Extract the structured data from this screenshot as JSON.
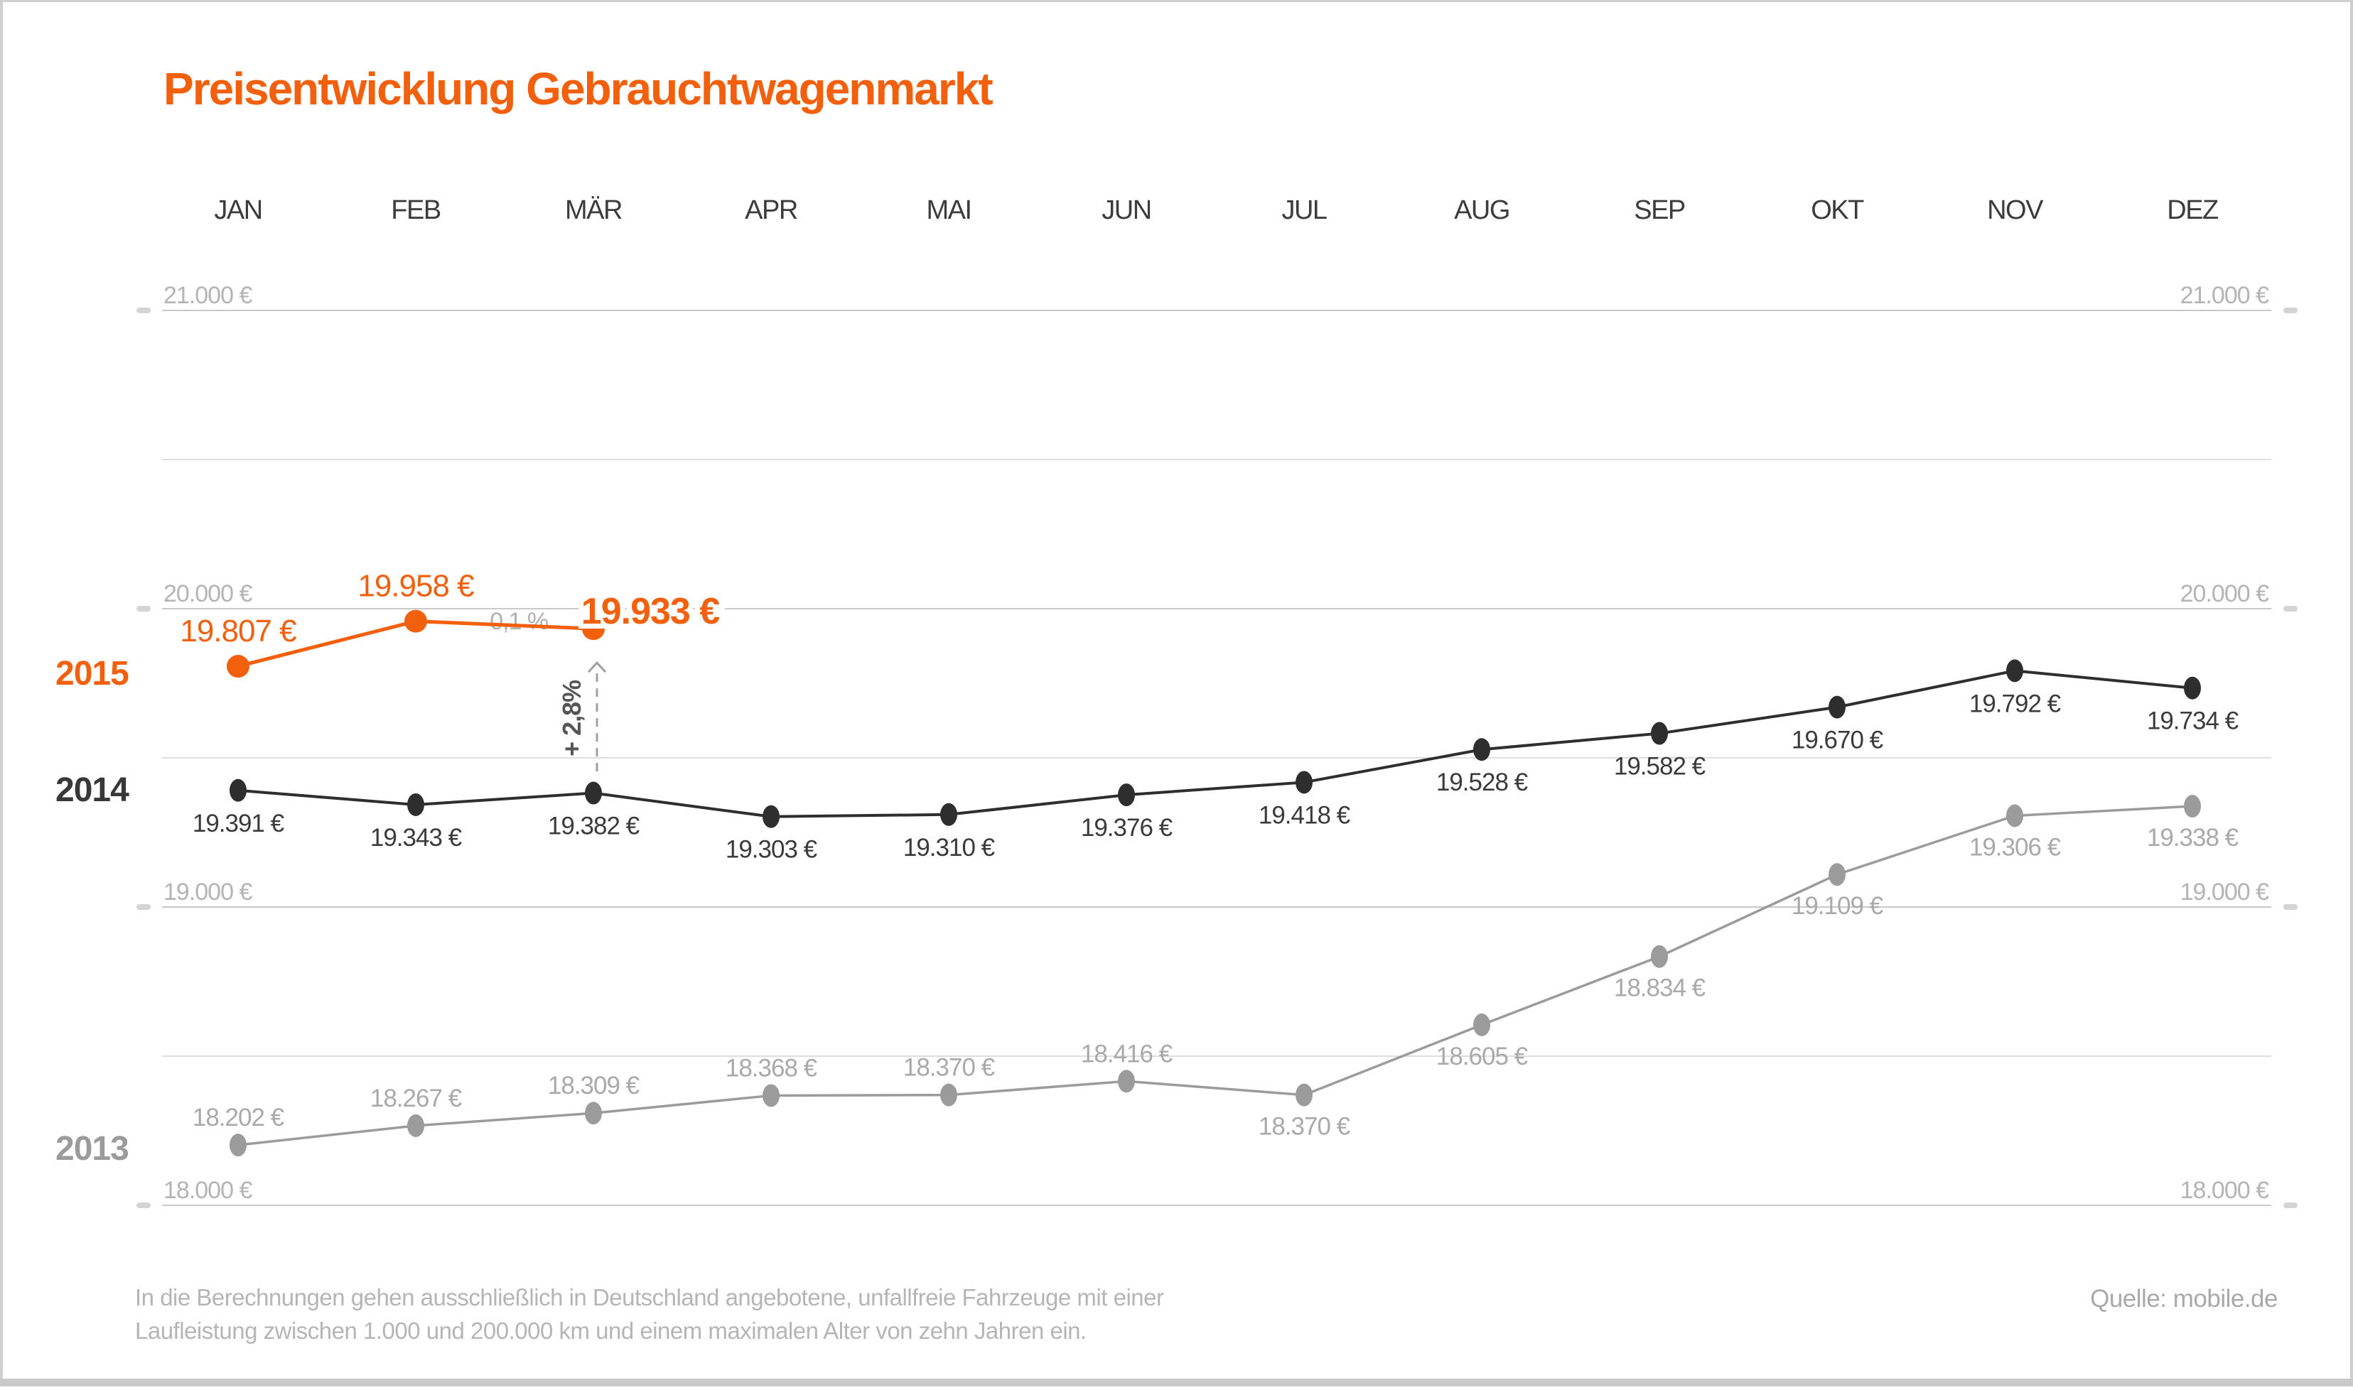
{
  "chart_data": {
    "type": "line",
    "title": "Preisentwicklung Gebrauchtwagenmarkt",
    "title_color": "#F2600D",
    "categories": [
      "JAN",
      "FEB",
      "MÄR",
      "APR",
      "MAI",
      "JUN",
      "JUL",
      "AUG",
      "SEP",
      "OKT",
      "NOV",
      "DEZ"
    ],
    "y_axis": {
      "tick_values": [
        21000,
        20000,
        19000,
        18000
      ],
      "tick_labels": [
        "21.000 €",
        "20.000 €",
        "19.000 €",
        "18.000 €"
      ],
      "minor_values": [
        20500,
        19500,
        18500
      ],
      "ylim": [
        18000,
        21000
      ],
      "unit": "€",
      "labels_on_both_sides": true
    },
    "grid": true,
    "legend_position": "left",
    "series": [
      {
        "name": "2015",
        "color": "#F2600D",
        "values": [
          19807,
          19958,
          19933
        ],
        "value_labels": [
          "19.807 €",
          "19.958 €",
          "19.933 €"
        ]
      },
      {
        "name": "2014",
        "color": "#2E2E2E",
        "values": [
          19391,
          19343,
          19382,
          19303,
          19310,
          19376,
          19418,
          19528,
          19582,
          19670,
          19792,
          19734
        ],
        "value_labels": [
          "19.391 €",
          "19.343 €",
          "19.382 €",
          "19.303 €",
          "19.310 €",
          "19.376 €",
          "19.418 €",
          "19.528 €",
          "19.582 €",
          "19.670 €",
          "19.792 €",
          "19.734 €"
        ]
      },
      {
        "name": "2013",
        "color": "#9B9B9B",
        "values": [
          18202,
          18267,
          18309,
          18368,
          18370,
          18416,
          18370,
          18605,
          18834,
          19109,
          19306,
          19338
        ],
        "value_labels": [
          "18.202 €",
          "18.267 €",
          "18.309 €",
          "18.368 €",
          "18.370 €",
          "18.416 €",
          "18.370 €",
          "18.605 €",
          "18.834 €",
          "19.109 €",
          "19.306 €",
          "19.338 €"
        ]
      }
    ],
    "annotations": [
      {
        "id": "feb-mar-change",
        "text": "– 0,1 %"
      },
      {
        "id": "year-over-year-change",
        "text": "+ 2,8%"
      }
    ]
  },
  "footer": {
    "note_line1": "In die Berechnungen gehen ausschließlich in Deutschland angebotene, unfallfreie Fahrzeuge mit einer",
    "note_line2": "Laufleistung zwischen 1.000 und 200.000 km und einem maximalen Alter von zehn Jahren ein.",
    "source": "Quelle: mobile.de"
  }
}
